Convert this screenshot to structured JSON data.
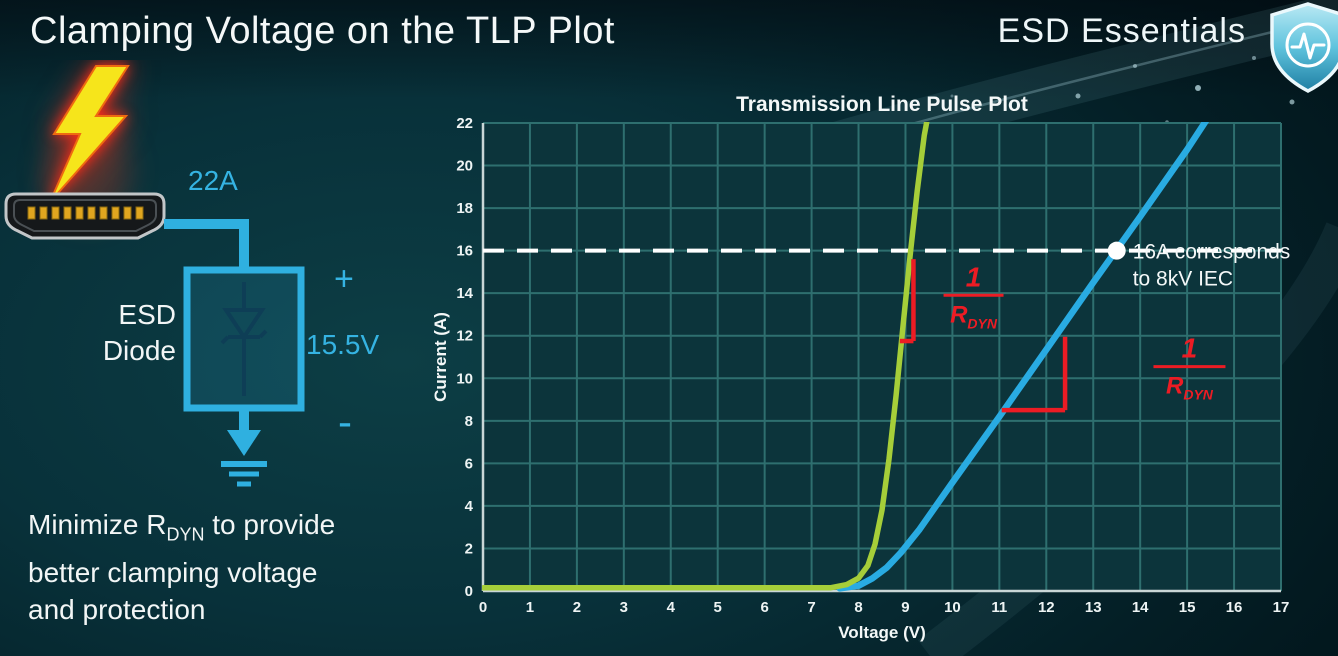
{
  "slide": {
    "title": "Clamping Voltage on the TLP Plot",
    "brand": "ESD Essentials"
  },
  "diagram": {
    "surge_current": "22A",
    "device_line1": "ESD",
    "device_line2": "Diode",
    "polarity_plus": "+",
    "polarity_minus": "-",
    "clamp_voltage": "15.5V"
  },
  "note": {
    "line1_pre": "Minimize R",
    "line1_sub": "DYN",
    "line1_post": " to provide",
    "line2": "better clamping voltage",
    "line3": "and protection"
  },
  "chart_data": {
    "type": "line",
    "title": "Transmission Line Pulse Plot",
    "xlabel": "Voltage (V)",
    "ylabel": "Current (A)",
    "xlim": [
      0,
      17
    ],
    "ylim": [
      0,
      22
    ],
    "xticks": [
      0,
      1,
      2,
      3,
      4,
      5,
      6,
      7,
      8,
      9,
      10,
      11,
      12,
      13,
      14,
      15,
      16,
      17
    ],
    "yticks": [
      0,
      2,
      4,
      6,
      8,
      10,
      12,
      14,
      16,
      18,
      20,
      22
    ],
    "grid": true,
    "legend": "none",
    "colors": {
      "grid": "#2e6f6f",
      "axis": "#c9d6d6",
      "tick_text": "#eef4f4",
      "annotation": "#ec1c24",
      "reference": "#ffffff",
      "plot_bg": "#0c343b"
    },
    "series": [
      {
        "name": "blue_curve",
        "color": "#29abe2",
        "points": [
          [
            7.6,
            0.12
          ],
          [
            8.0,
            0.25
          ],
          [
            8.3,
            0.6
          ],
          [
            8.6,
            1.1
          ],
          [
            8.9,
            1.8
          ],
          [
            9.3,
            2.9
          ],
          [
            10,
            5.1
          ],
          [
            11,
            8.2
          ],
          [
            12,
            11.35
          ],
          [
            13,
            14.5
          ],
          [
            13.5,
            16.05
          ],
          [
            14,
            17.6
          ],
          [
            15,
            20.75
          ],
          [
            15.55,
            22.6
          ]
        ]
      },
      {
        "name": "green_curve",
        "color": "#a6ce39",
        "points": [
          [
            0,
            0.15
          ],
          [
            7.4,
            0.15
          ],
          [
            7.75,
            0.3
          ],
          [
            8.0,
            0.6
          ],
          [
            8.2,
            1.2
          ],
          [
            8.35,
            2.2
          ],
          [
            8.5,
            3.8
          ],
          [
            8.65,
            6.2
          ],
          [
            8.8,
            9.2
          ],
          [
            8.95,
            12.5
          ],
          [
            9.1,
            15.8
          ],
          [
            9.25,
            18.8
          ],
          [
            9.4,
            21.4
          ],
          [
            9.5,
            22.6
          ]
        ]
      }
    ],
    "reference_line": {
      "y": 16,
      "dashed": true,
      "color": "#ffffff"
    },
    "marker_point": {
      "x": 13.5,
      "y": 16,
      "color": "#ffffff",
      "label_lines": [
        "16A corresponds",
        "to 8kV IEC"
      ]
    },
    "rdyn_annotations": [
      {
        "segments": [
          [
            9.17,
            15.6,
            9.17,
            11.75
          ],
          [
            9.17,
            11.75,
            8.88,
            11.75
          ]
        ],
        "bar_half": 30,
        "label_x": 10.45,
        "label_y": 13.9,
        "num": "1",
        "den": "R",
        "sub": "DYN"
      },
      {
        "segments": [
          [
            11.05,
            8.5,
            12.4,
            8.5
          ],
          [
            12.4,
            8.5,
            12.4,
            11.95
          ]
        ],
        "bar_half": 36,
        "label_x": 15.05,
        "label_y": 10.55,
        "num": "1",
        "den": "R",
        "sub": "DYN"
      }
    ]
  }
}
